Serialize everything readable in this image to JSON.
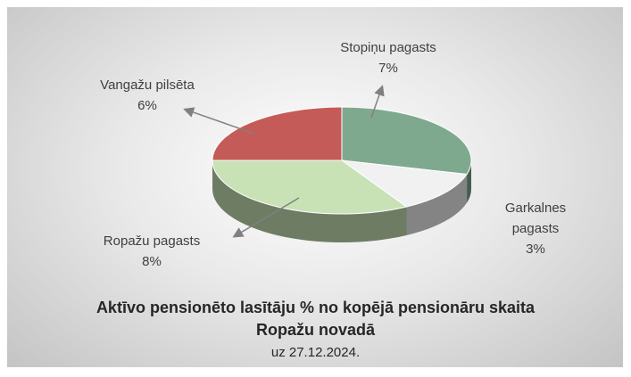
{
  "chart_data": {
    "type": "pie",
    "title": "Aktīvo pensionēto lasītāju % no kopējā pensionāru skaita Ropažu novadā",
    "subtitle": "uz 27.12.2024.",
    "categories": [
      "Stopiņu pagasts",
      "Garkalnes pagasts",
      "Ropažu pagasts",
      "Vangažu pilsēta"
    ],
    "values": [
      7,
      3,
      8,
      6
    ],
    "value_labels": [
      "7%",
      "3%",
      "8%",
      "6%"
    ],
    "colors": [
      "#7fa98f",
      "#f1f1f1",
      "#c8e2b6",
      "#c55b58"
    ]
  }
}
